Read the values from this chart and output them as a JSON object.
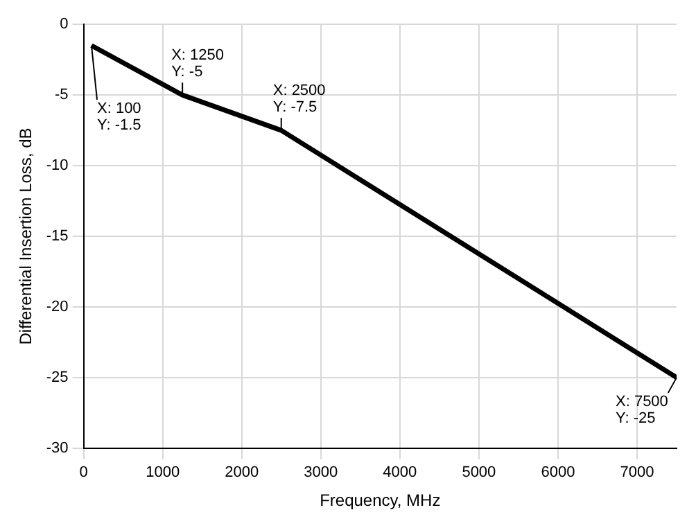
{
  "chart_data": {
    "type": "line",
    "xlabel": "Frequency, MHz",
    "ylabel": "Differential Insertion Loss, dB",
    "x": [
      100,
      1250,
      2500,
      7500
    ],
    "series": [
      {
        "color": "#000000",
        "values": [
          -1.5,
          -5,
          -7.5,
          -25
        ]
      }
    ],
    "xlim": [
      0,
      7500
    ],
    "xticks": [
      0,
      1000,
      2000,
      3000,
      4000,
      5000,
      6000,
      7000
    ],
    "ylim": [
      -30,
      0
    ],
    "yticks": [
      -30,
      -25,
      -20,
      -15,
      -10,
      -5,
      0
    ],
    "grid": true,
    "legend": false,
    "marker": "none",
    "line_style": "solid",
    "annotations": [
      {
        "text": "X: 100\nY: -1.5",
        "x": 100,
        "y": -1.5
      },
      {
        "text": "X: 1250\nY: -5",
        "x": 1250,
        "y": -5
      },
      {
        "text": "X: 2500\nY: -7.5",
        "x": 2500,
        "y": -7.5
      },
      {
        "text": "X: 7500\nY: -25",
        "x": 7500,
        "y": -25
      }
    ]
  }
}
